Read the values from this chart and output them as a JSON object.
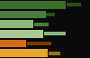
{
  "bars": [
    {
      "value": 55,
      "secondary": 12,
      "color": "#3a6e2a",
      "secondary_color": "#2a4e1a"
    },
    {
      "value": 38,
      "secondary": 7,
      "color": "#4a7e3a",
      "secondary_color": "#2a4e1a"
    },
    {
      "value": 28,
      "secondary": 12,
      "color": "#8aba7a",
      "secondary_color": "#4a7e3a"
    },
    {
      "value": 36,
      "secondary": 18,
      "color": "#a8c898",
      "secondary_color": "#8aba7a"
    },
    {
      "value": 22,
      "secondary": 20,
      "color": "#d86e10",
      "secondary_color": "#7a3a00"
    },
    {
      "value": 40,
      "secondary": 10,
      "color": "#e8a820",
      "secondary_color": "#a87000"
    }
  ],
  "xlim": [
    0,
    75
  ],
  "background_color": "#0a0a0a",
  "bar_height": 0.82
}
